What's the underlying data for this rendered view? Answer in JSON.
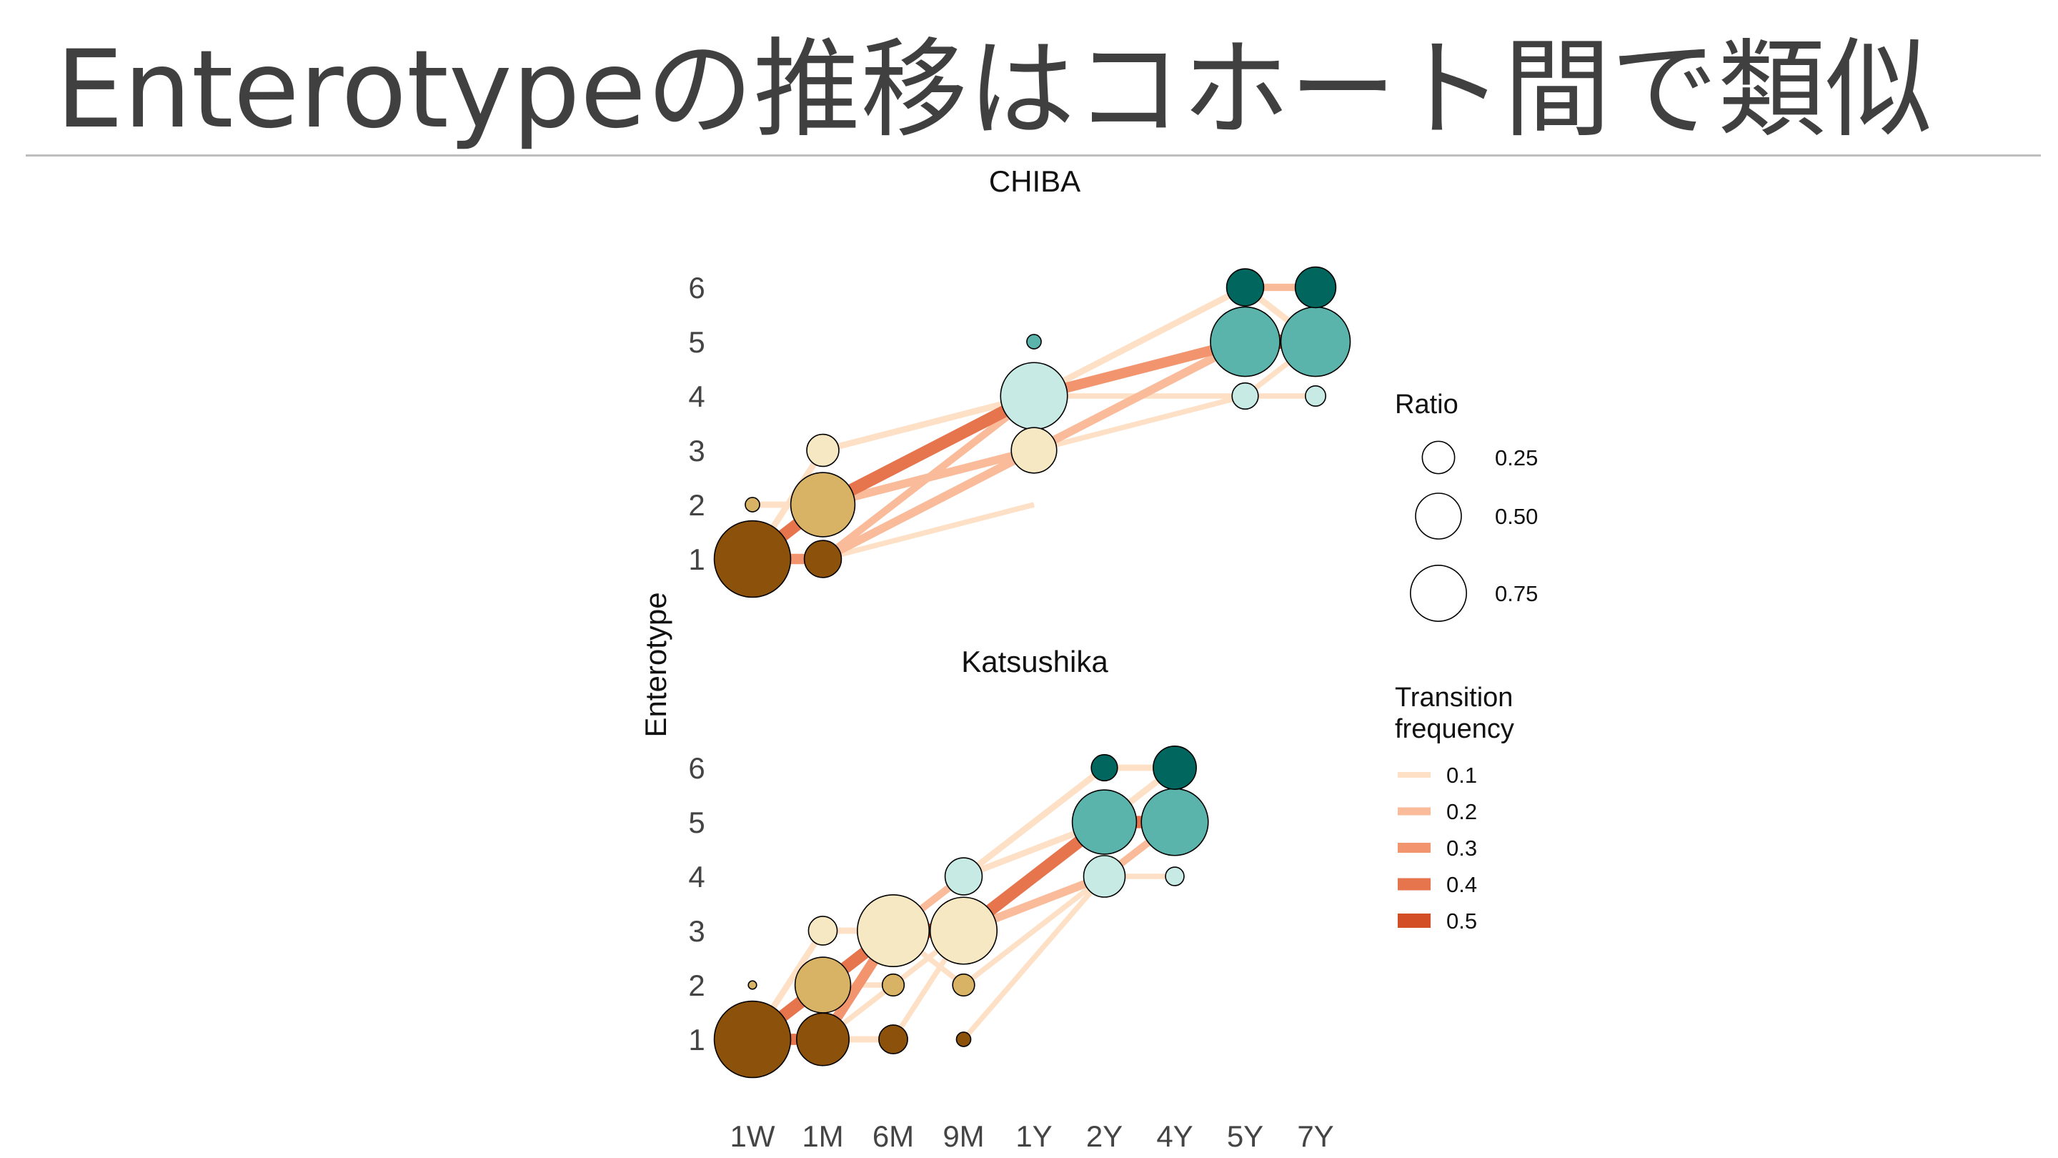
{
  "slide": {
    "title": "Enterotypeの推移はコホート間で類似"
  },
  "chart_data": {
    "type": "scatter",
    "ylabel": "Enterotype",
    "x_categories": [
      "1W",
      "1M",
      "6M",
      "9M",
      "1Y",
      "2Y",
      "4Y",
      "5Y",
      "7Y"
    ],
    "y_ticks": [
      "1",
      "2",
      "3",
      "4",
      "5",
      "6"
    ],
    "enterotype_colors": {
      "1": "#8c510a",
      "2": "#d8b365",
      "3": "#f6e8c3",
      "4": "#c7eae5",
      "5": "#5ab4ac",
      "6": "#01665e"
    },
    "panels": [
      {
        "title": "CHIBA",
        "points": [
          {
            "x": "1W",
            "y": 1,
            "ratio": 0.85
          },
          {
            "x": "1W",
            "y": 2,
            "ratio": 0.03
          },
          {
            "x": "1M",
            "y": 1,
            "ratio": 0.2
          },
          {
            "x": "1M",
            "y": 2,
            "ratio": 0.6
          },
          {
            "x": "1M",
            "y": 3,
            "ratio": 0.15
          },
          {
            "x": "1Y",
            "y": 3,
            "ratio": 0.3
          },
          {
            "x": "1Y",
            "y": 4,
            "ratio": 0.65
          },
          {
            "x": "1Y",
            "y": 5,
            "ratio": 0.03
          },
          {
            "x": "5Y",
            "y": 4,
            "ratio": 0.1
          },
          {
            "x": "5Y",
            "y": 5,
            "ratio": 0.7
          },
          {
            "x": "5Y",
            "y": 6,
            "ratio": 0.2
          },
          {
            "x": "7Y",
            "y": 4,
            "ratio": 0.06
          },
          {
            "x": "7Y",
            "y": 5,
            "ratio": 0.7
          },
          {
            "x": "7Y",
            "y": 6,
            "ratio": 0.24
          }
        ],
        "transitions": [
          {
            "from": [
              "1W",
              1
            ],
            "to": [
              "1M",
              1
            ],
            "freq": 0.3
          },
          {
            "from": [
              "1W",
              1
            ],
            "to": [
              "1M",
              2
            ],
            "freq": 0.4
          },
          {
            "from": [
              "1W",
              1
            ],
            "to": [
              "1M",
              3
            ],
            "freq": 0.1
          },
          {
            "from": [
              "1W",
              2
            ],
            "to": [
              "1M",
              2
            ],
            "freq": 0.1
          },
          {
            "from": [
              "1M",
              2
            ],
            "to": [
              "1Y",
              4
            ],
            "freq": 0.4
          },
          {
            "from": [
              "1M",
              3
            ],
            "to": [
              "1Y",
              4
            ],
            "freq": 0.1
          },
          {
            "from": [
              "1M",
              1
            ],
            "to": [
              "1Y",
              3
            ],
            "freq": 0.2
          },
          {
            "from": [
              "1M",
              1
            ],
            "to": [
              "1Y",
              4
            ],
            "freq": 0.15
          },
          {
            "from": [
              "1M",
              2
            ],
            "to": [
              "1Y",
              3
            ],
            "freq": 0.2
          },
          {
            "from": [
              "1M",
              1
            ],
            "to": [
              "1Y",
              2
            ],
            "freq": 0.05
          },
          {
            "from": [
              "1Y",
              4
            ],
            "to": [
              "5Y",
              5
            ],
            "freq": 0.3
          },
          {
            "from": [
              "1Y",
              4
            ],
            "to": [
              "5Y",
              6
            ],
            "freq": 0.1
          },
          {
            "from": [
              "1Y",
              3
            ],
            "to": [
              "5Y",
              5
            ],
            "freq": 0.2
          },
          {
            "from": [
              "1Y",
              4
            ],
            "to": [
              "5Y",
              4
            ],
            "freq": 0.05
          },
          {
            "from": [
              "1Y",
              3
            ],
            "to": [
              "5Y",
              4
            ],
            "freq": 0.05
          },
          {
            "from": [
              "5Y",
              5
            ],
            "to": [
              "7Y",
              5
            ],
            "freq": 0.5
          },
          {
            "from": [
              "5Y",
              6
            ],
            "to": [
              "7Y",
              6
            ],
            "freq": 0.15
          },
          {
            "from": [
              "5Y",
              4
            ],
            "to": [
              "7Y",
              5
            ],
            "freq": 0.05
          },
          {
            "from": [
              "5Y",
              6
            ],
            "to": [
              "7Y",
              5
            ],
            "freq": 0.1
          },
          {
            "from": [
              "5Y",
              4
            ],
            "to": [
              "7Y",
              4
            ],
            "freq": 0.05
          }
        ]
      },
      {
        "title": "Katsushika",
        "points": [
          {
            "x": "1W",
            "y": 1,
            "ratio": 0.85
          },
          {
            "x": "1W",
            "y": 2,
            "ratio": 0.01
          },
          {
            "x": "1M",
            "y": 1,
            "ratio": 0.4
          },
          {
            "x": "1M",
            "y": 2,
            "ratio": 0.45
          },
          {
            "x": "1M",
            "y": 3,
            "ratio": 0.12
          },
          {
            "x": "6M",
            "y": 1,
            "ratio": 0.12
          },
          {
            "x": "6M",
            "y": 2,
            "ratio": 0.07
          },
          {
            "x": "6M",
            "y": 3,
            "ratio": 0.75
          },
          {
            "x": "9M",
            "y": 1,
            "ratio": 0.03
          },
          {
            "x": "9M",
            "y": 2,
            "ratio": 0.07
          },
          {
            "x": "9M",
            "y": 3,
            "ratio": 0.65
          },
          {
            "x": "9M",
            "y": 4,
            "ratio": 0.2
          },
          {
            "x": "2Y",
            "y": 4,
            "ratio": 0.25
          },
          {
            "x": "2Y",
            "y": 5,
            "ratio": 0.6
          },
          {
            "x": "2Y",
            "y": 6,
            "ratio": 0.1
          },
          {
            "x": "4Y",
            "y": 4,
            "ratio": 0.05
          },
          {
            "x": "4Y",
            "y": 5,
            "ratio": 0.65
          },
          {
            "x": "4Y",
            "y": 6,
            "ratio": 0.27
          }
        ],
        "transitions": [
          {
            "from": [
              "1W",
              1
            ],
            "to": [
              "1M",
              1
            ],
            "freq": 0.35
          },
          {
            "from": [
              "1W",
              1
            ],
            "to": [
              "1M",
              2
            ],
            "freq": 0.4
          },
          {
            "from": [
              "1W",
              1
            ],
            "to": [
              "1M",
              3
            ],
            "freq": 0.1
          },
          {
            "from": [
              "1M",
              2
            ],
            "to": [
              "6M",
              3
            ],
            "freq": 0.4
          },
          {
            "from": [
              "1M",
              1
            ],
            "to": [
              "6M",
              3
            ],
            "freq": 0.3
          },
          {
            "from": [
              "1M",
              1
            ],
            "to": [
              "6M",
              1
            ],
            "freq": 0.1
          },
          {
            "from": [
              "1M",
              3
            ],
            "to": [
              "6M",
              3
            ],
            "freq": 0.1
          },
          {
            "from": [
              "1M",
              2
            ],
            "to": [
              "6M",
              2
            ],
            "freq": 0.05
          },
          {
            "from": [
              "1M",
              1
            ],
            "to": [
              "6M",
              2
            ],
            "freq": 0.05
          },
          {
            "from": [
              "6M",
              3
            ],
            "to": [
              "9M",
              3
            ],
            "freq": 0.5
          },
          {
            "from": [
              "6M",
              3
            ],
            "to": [
              "9M",
              4
            ],
            "freq": 0.15
          },
          {
            "from": [
              "6M",
              1
            ],
            "to": [
              "9M",
              3
            ],
            "freq": 0.05
          },
          {
            "from": [
              "6M",
              2
            ],
            "to": [
              "9M",
              3
            ],
            "freq": 0.05
          },
          {
            "from": [
              "6M",
              3
            ],
            "to": [
              "9M",
              2
            ],
            "freq": 0.05
          },
          {
            "from": [
              "9M",
              3
            ],
            "to": [
              "2Y",
              5
            ],
            "freq": 0.4
          },
          {
            "from": [
              "9M",
              4
            ],
            "to": [
              "2Y",
              5
            ],
            "freq": 0.1
          },
          {
            "from": [
              "9M",
              3
            ],
            "to": [
              "2Y",
              4
            ],
            "freq": 0.2
          },
          {
            "from": [
              "9M",
              4
            ],
            "to": [
              "2Y",
              6
            ],
            "freq": 0.1
          },
          {
            "from": [
              "9M",
              2
            ],
            "to": [
              "2Y",
              4
            ],
            "freq": 0.05
          },
          {
            "from": [
              "9M",
              1
            ],
            "to": [
              "2Y",
              4
            ],
            "freq": 0.05
          },
          {
            "from": [
              "2Y",
              5
            ],
            "to": [
              "4Y",
              5
            ],
            "freq": 0.4
          },
          {
            "from": [
              "2Y",
              6
            ],
            "to": [
              "4Y",
              6
            ],
            "freq": 0.1
          },
          {
            "from": [
              "2Y",
              4
            ],
            "to": [
              "4Y",
              5
            ],
            "freq": 0.15
          },
          {
            "from": [
              "2Y",
              5
            ],
            "to": [
              "4Y",
              6
            ],
            "freq": 0.1
          },
          {
            "from": [
              "2Y",
              4
            ],
            "to": [
              "4Y",
              4
            ],
            "freq": 0.05
          }
        ]
      }
    ],
    "legend_ratio": {
      "title": "Ratio",
      "values": [
        0.25,
        0.5,
        0.75
      ],
      "labels": [
        "0.25",
        "0.50",
        "0.75"
      ]
    },
    "legend_transition": {
      "title_line1": "Transition",
      "title_line2": "frequency",
      "values": [
        0.1,
        0.2,
        0.3,
        0.4,
        0.5
      ],
      "labels": [
        "0.1",
        "0.2",
        "0.3",
        "0.4",
        "0.5"
      ],
      "colors": [
        "#fde0c5",
        "#f9bb9a",
        "#f2956f",
        "#e6744d",
        "#d44e25"
      ]
    }
  }
}
